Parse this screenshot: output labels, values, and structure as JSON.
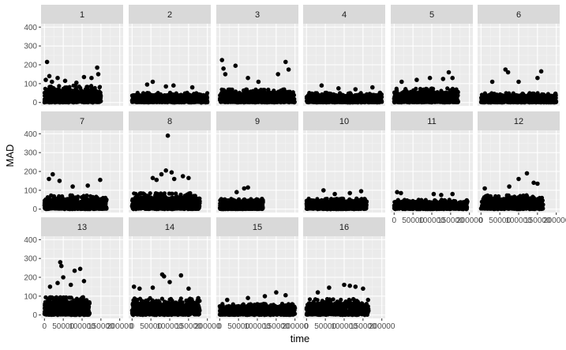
{
  "chart_data": {
    "type": "scatter",
    "facet_type": "facet_wrap",
    "columns": 6,
    "xlabel": "time",
    "ylabel": "MAD",
    "xlim": [
      0,
      200000
    ],
    "ylim": [
      0,
      400
    ],
    "x_ticks": [
      0,
      50000,
      100000,
      150000,
      200000
    ],
    "x_tick_labels": [
      "0",
      "50000",
      "100000",
      "150000",
      "200000"
    ],
    "y_ticks": [
      0,
      100,
      200,
      300,
      400
    ],
    "y_tick_labels": [
      "0",
      "100",
      "200",
      "300",
      "400"
    ],
    "grid": true,
    "colors": {
      "panel_bg": "#EBEBEB",
      "grid_major": "#FFFFFF",
      "grid_minor": "#F5F5F5",
      "strip_bg": "#D9D9D9",
      "points": "#000000"
    },
    "facets": [
      {
        "label": "1",
        "x_range": [
          0,
          150000
        ],
        "base": 45,
        "spread": 45,
        "outliers": [
          [
            3500,
            120
          ],
          [
            7000,
            215
          ],
          [
            13000,
            140
          ],
          [
            20000,
            110
          ],
          [
            35000,
            130
          ],
          [
            55000,
            115
          ],
          [
            85000,
            105
          ],
          [
            105000,
            135
          ],
          [
            125000,
            130
          ],
          [
            140000,
            185
          ],
          [
            143000,
            150
          ]
        ]
      },
      {
        "label": "2",
        "x_range": [
          0,
          200000
        ],
        "base": 22,
        "spread": 30,
        "outliers": [
          [
            40000,
            95
          ],
          [
            55000,
            110
          ],
          [
            90000,
            85
          ],
          [
            110000,
            90
          ],
          [
            160000,
            80
          ]
        ]
      },
      {
        "label": "3",
        "x_range": [
          0,
          200000
        ],
        "base": 30,
        "spread": 40,
        "outliers": [
          [
            6000,
            225
          ],
          [
            10000,
            180
          ],
          [
            15000,
            150
          ],
          [
            42000,
            195
          ],
          [
            75000,
            130
          ],
          [
            103000,
            110
          ],
          [
            155000,
            150
          ],
          [
            175000,
            215
          ],
          [
            183000,
            175
          ]
        ]
      },
      {
        "label": "4",
        "x_range": [
          0,
          200000
        ],
        "base": 22,
        "spread": 30,
        "outliers": [
          [
            40000,
            90
          ],
          [
            85000,
            75
          ],
          [
            130000,
            70
          ],
          [
            175000,
            80
          ]
        ]
      },
      {
        "label": "5",
        "x_range": [
          0,
          170000
        ],
        "base": 35,
        "spread": 40,
        "outliers": [
          [
            20000,
            110
          ],
          [
            60000,
            120
          ],
          [
            95000,
            130
          ],
          [
            130000,
            125
          ],
          [
            145000,
            160
          ],
          [
            155000,
            130
          ]
        ]
      },
      {
        "label": "6",
        "x_range": [
          0,
          200000
        ],
        "base": 20,
        "spread": 30,
        "outliers": [
          [
            30000,
            110
          ],
          [
            65000,
            175
          ],
          [
            72000,
            160
          ],
          [
            100000,
            110
          ],
          [
            150000,
            130
          ],
          [
            160000,
            165
          ]
        ]
      },
      {
        "label": "7",
        "x_range": [
          0,
          165000
        ],
        "base": 35,
        "spread": 40,
        "outliers": [
          [
            12000,
            160
          ],
          [
            22000,
            185
          ],
          [
            40000,
            150
          ],
          [
            75000,
            120
          ],
          [
            115000,
            125
          ],
          [
            148000,
            155
          ]
        ]
      },
      {
        "label": "8",
        "x_range": [
          0,
          180000
        ],
        "base": 40,
        "spread": 45,
        "outliers": [
          [
            55000,
            165
          ],
          [
            65000,
            155
          ],
          [
            78000,
            185
          ],
          [
            90000,
            205
          ],
          [
            95000,
            390
          ],
          [
            105000,
            195
          ],
          [
            112000,
            160
          ],
          [
            135000,
            175
          ],
          [
            150000,
            165
          ]
        ]
      },
      {
        "label": "9",
        "x_range": [
          0,
          115000
        ],
        "base": 20,
        "spread": 35,
        "outliers": [
          [
            45000,
            90
          ],
          [
            65000,
            110
          ],
          [
            75000,
            115
          ]
        ]
      },
      {
        "label": "10",
        "x_range": [
          0,
          160000
        ],
        "base": 22,
        "spread": 35,
        "outliers": [
          [
            45000,
            100
          ],
          [
            75000,
            80
          ],
          [
            115000,
            85
          ],
          [
            145000,
            95
          ]
        ]
      },
      {
        "label": "11",
        "x_range": [
          0,
          195000
        ],
        "base": 20,
        "spread": 30,
        "outliers": [
          [
            8000,
            90
          ],
          [
            18000,
            85
          ],
          [
            105000,
            80
          ],
          [
            125000,
            75
          ],
          [
            155000,
            80
          ]
        ]
      },
      {
        "label": "12",
        "x_range": [
          0,
          165000
        ],
        "base": 35,
        "spread": 40,
        "outliers": [
          [
            10000,
            110
          ],
          [
            75000,
            120
          ],
          [
            100000,
            160
          ],
          [
            122000,
            190
          ],
          [
            140000,
            140
          ],
          [
            150000,
            135
          ]
        ]
      },
      {
        "label": "13",
        "x_range": [
          0,
          120000
        ],
        "base": 45,
        "spread": 50,
        "outliers": [
          [
            15000,
            150
          ],
          [
            35000,
            170
          ],
          [
            42000,
            280
          ],
          [
            45000,
            260
          ],
          [
            50000,
            200
          ],
          [
            70000,
            160
          ],
          [
            80000,
            235
          ],
          [
            95000,
            245
          ],
          [
            105000,
            180
          ]
        ]
      },
      {
        "label": "14",
        "x_range": [
          0,
          180000
        ],
        "base": 40,
        "spread": 50,
        "outliers": [
          [
            5000,
            150
          ],
          [
            20000,
            140
          ],
          [
            55000,
            145
          ],
          [
            80000,
            215
          ],
          [
            85000,
            205
          ],
          [
            100000,
            175
          ],
          [
            130000,
            210
          ],
          [
            150000,
            140
          ]
        ]
      },
      {
        "label": "15",
        "x_range": [
          0,
          200000
        ],
        "base": 25,
        "spread": 35,
        "outliers": [
          [
            20000,
            80
          ],
          [
            75000,
            90
          ],
          [
            120000,
            100
          ],
          [
            150000,
            120
          ],
          [
            175000,
            105
          ]
        ]
      },
      {
        "label": "16",
        "x_range": [
          0,
          165000
        ],
        "base": 40,
        "spread": 45,
        "outliers": [
          [
            30000,
            120
          ],
          [
            60000,
            145
          ],
          [
            100000,
            160
          ],
          [
            115000,
            155
          ],
          [
            130000,
            150
          ],
          [
            150000,
            140
          ]
        ]
      }
    ]
  }
}
